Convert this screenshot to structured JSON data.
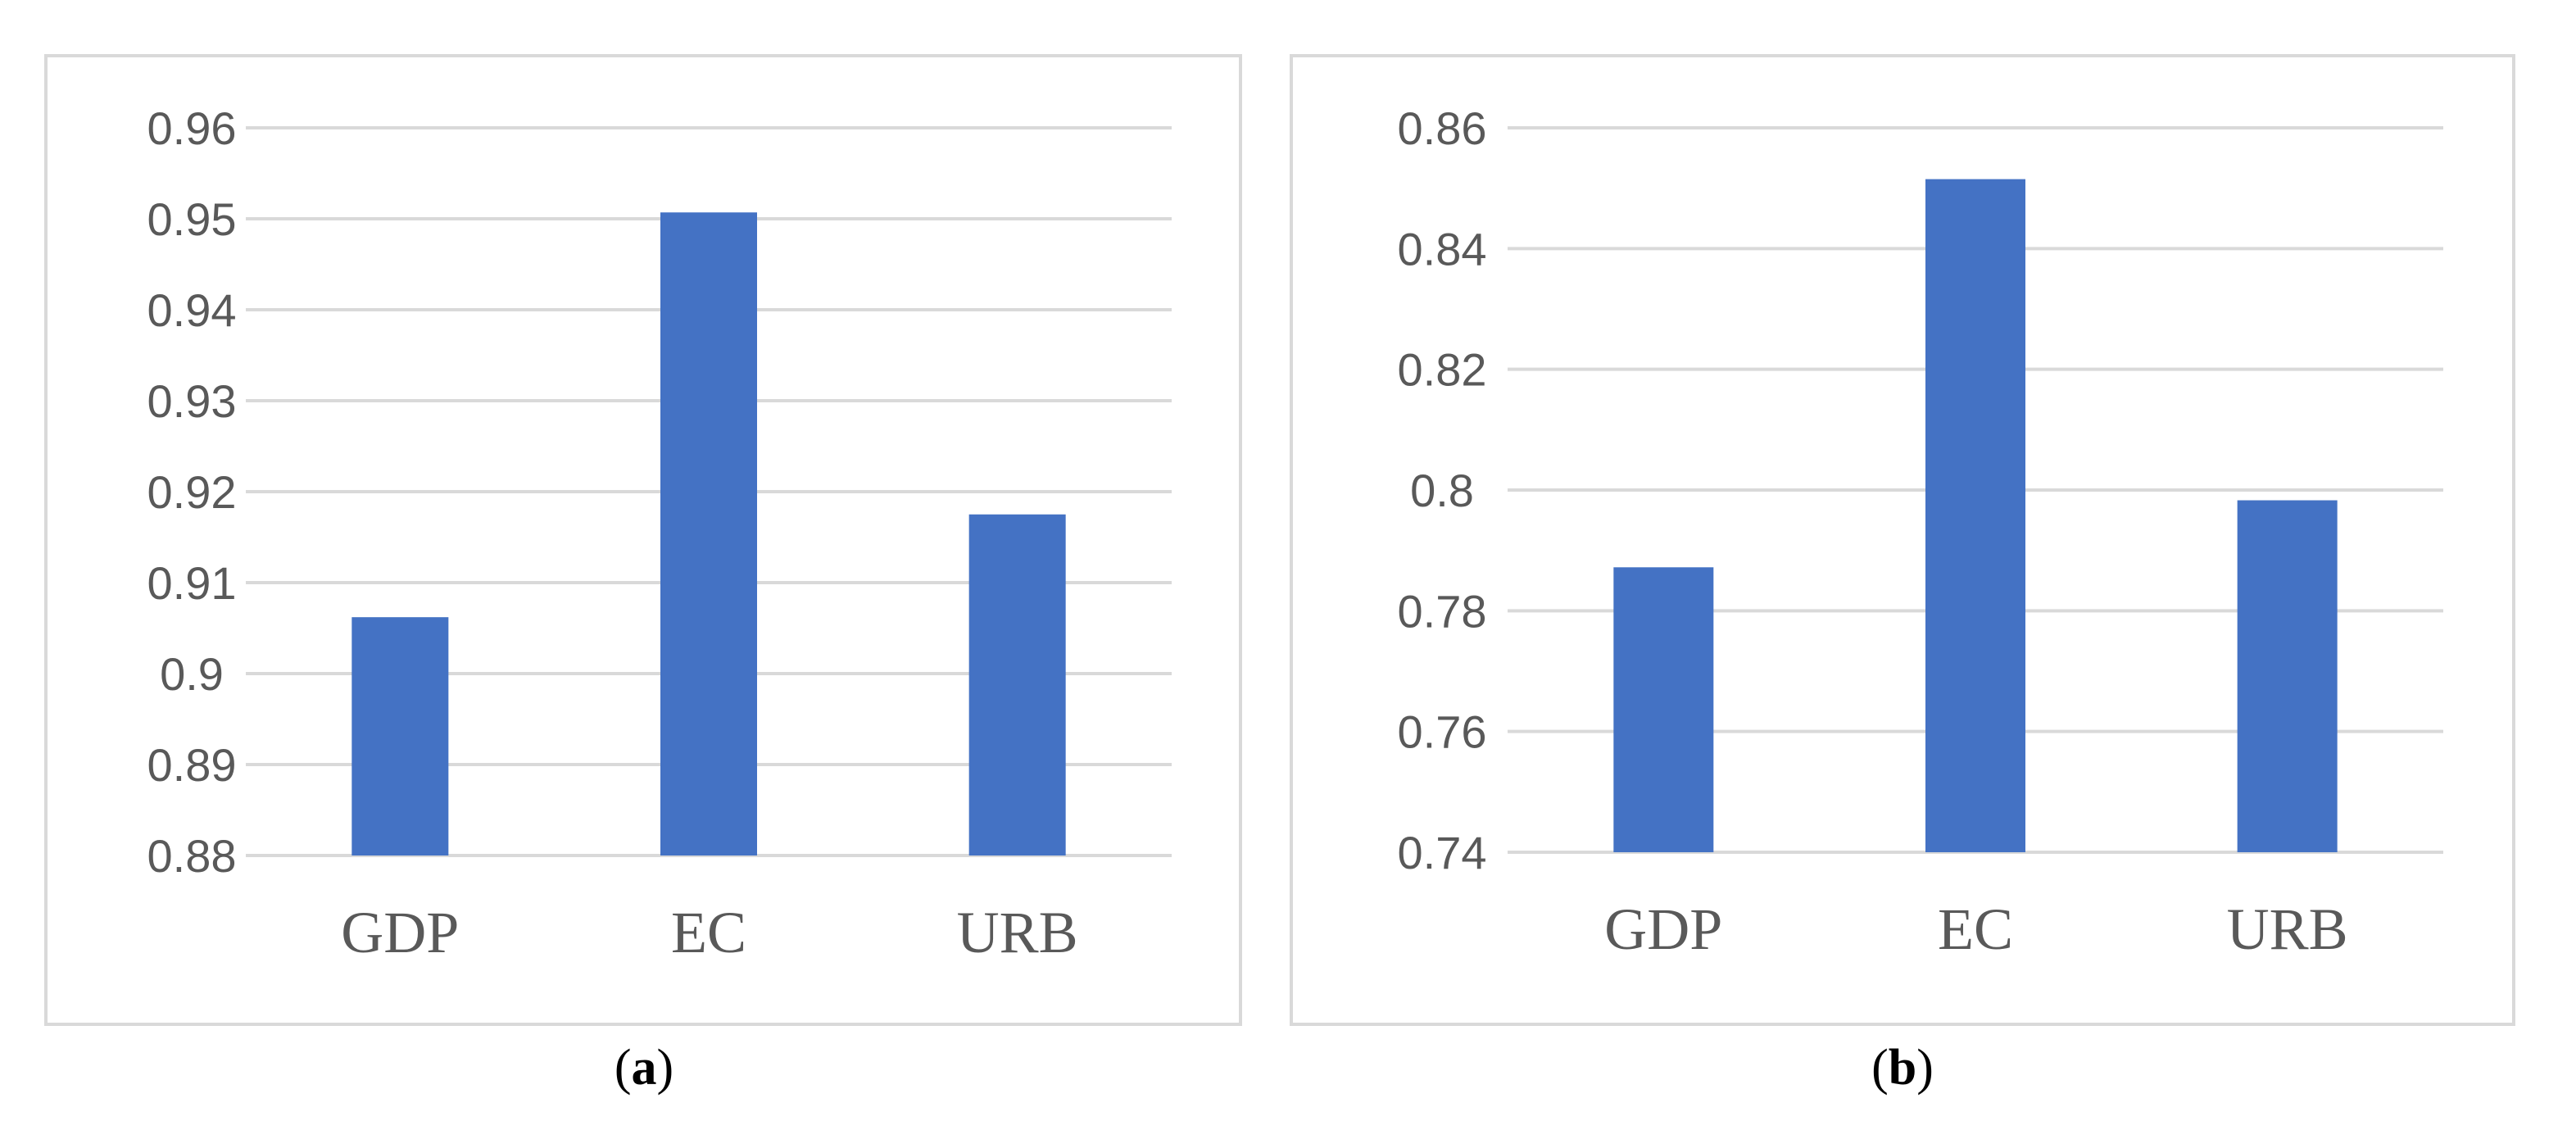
{
  "bar_color": "#4472c4",
  "grid_color": "#d9d9d9",
  "tick_text_color": "#595959",
  "chart_data": [
    {
      "type": "bar",
      "caption_letter": "a",
      "categories": [
        "GDP",
        "EC",
        "URB"
      ],
      "values": [
        0.9062,
        0.9507,
        0.9175
      ],
      "ylim": [
        0.88,
        0.96
      ],
      "yticks": [
        "0.88",
        "0.89",
        "0.9",
        "0.91",
        "0.92",
        "0.93",
        "0.94",
        "0.95",
        "0.96"
      ],
      "ytick_values": [
        0.88,
        0.89,
        0.9,
        0.91,
        0.92,
        0.93,
        0.94,
        0.95,
        0.96
      ],
      "grid": true,
      "legend": "none"
    },
    {
      "type": "bar",
      "caption_letter": "b",
      "categories": [
        "GDP",
        "EC",
        "URB"
      ],
      "values": [
        0.7872,
        0.8515,
        0.7983
      ],
      "ylim": [
        0.74,
        0.86
      ],
      "yticks": [
        "0.74",
        "0.76",
        "0.78",
        "0.8",
        "0.82",
        "0.84",
        "0.86"
      ],
      "ytick_values": [
        0.74,
        0.76,
        0.78,
        0.8,
        0.82,
        0.84,
        0.86
      ],
      "grid": true,
      "legend": "none"
    }
  ]
}
